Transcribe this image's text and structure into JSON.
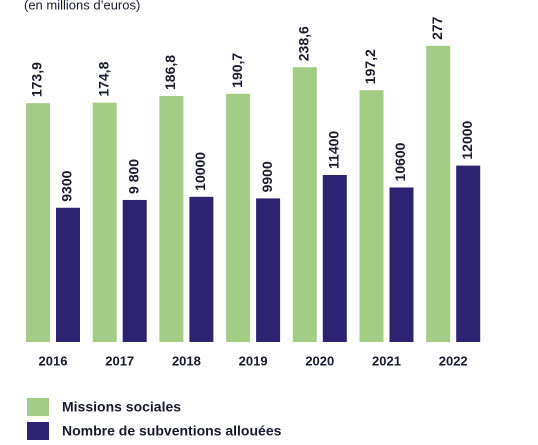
{
  "chart_data": {
    "type": "bar",
    "subtitle": "(en millions d’euros)",
    "categories": [
      "2016",
      "2017",
      "2018",
      "2019",
      "2020",
      "2021",
      "2022"
    ],
    "series": [
      {
        "name": "Missions sociales",
        "color": "#a3cd85",
        "values": [
          173.9,
          174.8,
          186.8,
          190.7,
          238.6,
          197.2,
          277
        ],
        "value_labels": [
          "173,9",
          "174,8",
          "186,8",
          "190,7",
          "238,6",
          "197,2",
          "277"
        ]
      },
      {
        "name": "Nombre de subventions allouées",
        "color": "#2e2272",
        "axis": "y2",
        "values": [
          9300,
          9800,
          10000,
          9900,
          11400,
          10600,
          12000
        ],
        "value_labels": [
          "9300",
          "9 800",
          "10000",
          "9900",
          "11400",
          "10600",
          "12000"
        ]
      }
    ],
    "ylim": [
      -256,
      320
    ],
    "y2lim": [
      700,
      21200
    ]
  }
}
